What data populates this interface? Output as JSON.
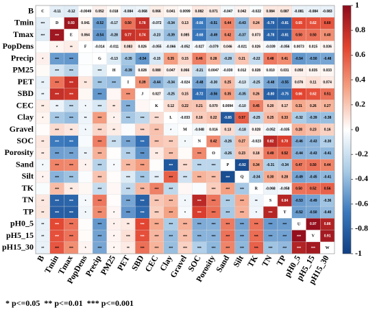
{
  "chart_data": {
    "type": "corrplot",
    "variables": [
      "B",
      "Tmin",
      "Tmax",
      "PopDens",
      "Precip",
      "PM25",
      "PET",
      "SBD",
      "CEC",
      "Clay",
      "Gravel",
      "SOC",
      "Porosity",
      "Sand",
      "Silt",
      "TK",
      "TN",
      "TP",
      "pH0_5",
      "pH5_15",
      "pH15_30"
    ],
    "diagonal_labels": [
      "C",
      "D",
      "E",
      "F",
      "G",
      "H",
      "I",
      "J",
      "K",
      "L",
      "M",
      "N",
      "O",
      "P",
      "Q",
      "R",
      "S",
      "T",
      "U",
      "V",
      "W"
    ],
    "values": [
      [
        -0.11,
        -0.12,
        -0.0049,
        0.052,
        0.018,
        -0.084,
        -0.068,
        0.066,
        0.041,
        0.0099,
        0.082,
        0.071,
        -0.047,
        0.042,
        -0.022,
        0.084,
        0.087,
        -0.081,
        -0.084,
        -0.083
      ],
      [
        0.93,
        0.041,
        -0.52,
        -0.17,
        0.5,
        0.78,
        -0.072,
        -0.34,
        0.13,
        -0.66,
        -0.51,
        0.44,
        -0.43,
        0.24,
        -0.79,
        -0.81,
        0.65,
        0.62,
        0.6
      ],
      [
        0.064,
        -0.54,
        -0.28,
        0.77,
        0.74,
        -0.23,
        -0.39,
        0.085,
        -0.68,
        -0.49,
        0.42,
        -0.37,
        0.073,
        -0.78,
        -0.81,
        0.5,
        0.5,
        0.4
      ],
      [
        -0.014,
        -0.011,
        0.083,
        0.026,
        -0.055,
        -0.066,
        -0.052,
        -0.027,
        -0.079,
        0.046,
        -0.021,
        0.026,
        -0.039,
        -0.056,
        0.0073,
        0.015,
        0.036
      ],
      [
        -0.13,
        -0.35,
        -0.54,
        -0.15,
        0.35,
        0.15,
        0.46,
        0.28,
        -0.28,
        0.21,
        -0.22,
        0.48,
        0.41,
        -0.54,
        -0.5,
        -0.48
      ],
      [
        -0.39,
        0.028,
        0.08,
        0.047,
        0.066,
        -0.21,
        0.0047,
        -0.03,
        0.012,
        0.028,
        0.01,
        0.031,
        0.05,
        0.035,
        0.033
      ],
      [
        0.39,
        -0.44,
        -0.34,
        -0.024,
        -0.48,
        -0.3,
        0.25,
        -0.13,
        -0.25,
        -0.48,
        -0.55,
        0.076,
        0.11,
        0.074
      ],
      [
        0.027,
        -0.25,
        0.15,
        -0.72,
        -0.56,
        0.35,
        -0.35,
        0.26,
        -0.8,
        -0.75,
        0.66,
        0.62,
        0.51
      ],
      [
        0.12,
        0.22,
        0.21,
        0.07,
        0.0094,
        -0.1,
        0.45,
        0.2,
        0.17,
        0.31,
        0.26,
        0.27
      ],
      [
        -0.033,
        0.18,
        0.22,
        -0.85,
        0.57,
        -0.25,
        0.25,
        0.33,
        -0.32,
        -0.39,
        -0.38
      ],
      [
        -0.048,
        0.016,
        0.13,
        -0.18,
        0.028,
        -0.052,
        -0.035,
        0.28,
        0.23,
        0.16
      ],
      [
        0.42,
        -0.26,
        0.27,
        -0.023,
        0.82,
        0.7,
        -0.46,
        -0.43,
        -0.3
      ],
      [
        -0.26,
        0.23,
        0.18,
        0.49,
        0.52,
        -0.44,
        -0.43,
        -0.41
      ],
      [
        -0.92,
        0.34,
        -0.31,
        -0.34,
        0.47,
        0.5,
        0.44
      ],
      [
        -0.34,
        0.3,
        0.28,
        -0.49,
        -0.45,
        -0.41
      ],
      [
        -0.068,
        -0.058,
        0.5,
        0.52,
        0.56
      ],
      [
        0.84,
        -0.53,
        -0.49,
        -0.36
      ],
      [
        -0.52,
        -0.5,
        -0.4
      ],
      [
        0.97,
        0.86
      ],
      [
        0.91
      ]
    ],
    "value_labels": [
      [
        "-0.11",
        "-0.12",
        "-0.0049",
        "0.052",
        "0.018",
        "-0.084",
        "-0.068",
        "0.066",
        "0.041",
        "0.0099",
        "0.082",
        "0.071",
        "-0.047",
        "0.042",
        "-0.022",
        "0.084",
        "0.087",
        "-0.081",
        "-0.084",
        "-0.083"
      ],
      [
        "0.93",
        "0.041",
        "-0.52",
        "-0.17",
        "0.50",
        "0.78",
        "-0.072",
        "-0.34",
        "0.13",
        "-0.66",
        "-0.51",
        "0.44",
        "-0.43",
        "0.24",
        "-0.79",
        "-0.81",
        "0.65",
        "0.62",
        "0.60"
      ],
      [
        "0.064",
        "-0.54",
        "-0.28",
        "0.77",
        "0.74",
        "-0.23",
        "-0.39",
        "0.085",
        "-0.68",
        "-0.49",
        "0.42",
        "-0.37",
        "0.073",
        "-0.78",
        "-0.81",
        "0.50",
        "0.50",
        "0.40"
      ],
      [
        "-0.014",
        "-0.011",
        "0.083",
        "0.026",
        "-0.055",
        "-0.066",
        "-0.052",
        "-0.027",
        "-0.079",
        "0.046",
        "-0.021",
        "0.026",
        "-0.039",
        "-0.056",
        "0.0073",
        "0.015",
        "0.036"
      ],
      [
        "-0.13",
        "-0.35",
        "-0.54",
        "-0.15",
        "0.35",
        "0.15",
        "0.46",
        "0.28",
        "-0.28",
        "0.21",
        "-0.22",
        "0.48",
        "0.41",
        "-0.54",
        "-0.50",
        "-0.48"
      ],
      [
        "-0.39",
        "0.028",
        "0.080",
        "0.047",
        "0.066",
        "-0.21",
        "0.0047",
        "-0.030",
        "0.012",
        "0.028",
        "0.010",
        "0.031",
        "0.050",
        "0.035",
        "0.033"
      ],
      [
        "0.39",
        "-0.44",
        "-0.34",
        "-0.024",
        "-0.48",
        "-0.30",
        "0.25",
        "-0.13",
        "-0.25",
        "-0.48",
        "-0.55",
        "0.076",
        "0.11",
        "0.074"
      ],
      [
        "0.027",
        "-0.25",
        "0.15",
        "-0.72",
        "-0.56",
        "0.35",
        "-0.35",
        "0.26",
        "-0.80",
        "-0.75",
        "0.66",
        "0.62",
        "0.51"
      ],
      [
        "0.12",
        "0.22",
        "0.21",
        "0.070",
        "0.0094",
        "-0.10",
        "0.45",
        "0.20",
        "0.17",
        "0.31",
        "0.26",
        "0.27"
      ],
      [
        "-0.033",
        "0.18",
        "0.22",
        "-0.85",
        "0.57",
        "-0.25",
        "0.25",
        "0.33",
        "-0.32",
        "-0.39",
        "-0.38"
      ],
      [
        "-0.048",
        "0.016",
        "0.13",
        "-0.18",
        "0.028",
        "-0.052",
        "-0.035",
        "0.28",
        "0.23",
        "0.16"
      ],
      [
        "0.42",
        "-0.26",
        "0.27",
        "-0.023",
        "0.82",
        "0.70",
        "-0.46",
        "-0.43",
        "-0.30"
      ],
      [
        "-0.26",
        "0.23",
        "0.18",
        "0.49",
        "0.52",
        "-0.44",
        "-0.43",
        "-0.41"
      ],
      [
        "-0.92",
        "0.34",
        "-0.31",
        "-0.34",
        "0.47",
        "0.50",
        "0.44"
      ],
      [
        "-0.34",
        "0.30",
        "0.28",
        "-0.49",
        "-0.45",
        "-0.41"
      ],
      [
        "-0.068",
        "-0.058",
        "0.50",
        "0.52",
        "0.56"
      ],
      [
        "0.84",
        "-0.53",
        "-0.49",
        "-0.36"
      ],
      [
        "-0.52",
        "-0.50",
        "-0.40"
      ],
      [
        "0.97",
        "0.86"
      ],
      [
        "0.91"
      ]
    ],
    "stars": [
      [
        "***"
      ],
      [
        "***",
        "***"
      ],
      [
        null,
        "*",
        "**"
      ],
      [
        "*",
        "***",
        "***",
        null
      ],
      [
        null,
        "***",
        "***",
        null,
        "***"
      ],
      [
        "**",
        "***",
        "***",
        "**",
        "***",
        "***"
      ],
      [
        "**",
        "***",
        "***",
        null,
        "***",
        null,
        "***"
      ],
      [
        "**",
        "**",
        "***",
        "*",
        "***",
        "**",
        "***",
        null
      ],
      [
        "*",
        "***",
        "***",
        "**",
        "***",
        "*",
        "***",
        "***",
        "***"
      ],
      [
        null,
        "***",
        "**",
        "*",
        "***",
        "**",
        null,
        "***",
        "***",
        "*"
      ],
      [
        "**",
        "***",
        "***",
        null,
        "***",
        "***",
        "***",
        "***",
        "***",
        "***",
        "*"
      ],
      [
        "**",
        "***",
        "***",
        "**",
        "***",
        null,
        "***",
        "***",
        "**",
        "***",
        null,
        "***"
      ],
      [
        "*",
        "***",
        "***",
        "*",
        "***",
        "*",
        "***",
        "***",
        null,
        "***",
        "***",
        "***",
        "***"
      ],
      [
        "*",
        "***",
        "***",
        null,
        "***",
        null,
        "***",
        "***",
        "***",
        "***",
        "***",
        "***",
        "***",
        "***"
      ],
      [
        null,
        "***",
        "**",
        null,
        "***",
        null,
        "***",
        "***",
        "***",
        "***",
        null,
        null,
        "***",
        "***",
        "***"
      ],
      [
        "**",
        "***",
        "***",
        "*",
        "***",
        null,
        "***",
        "***",
        "***",
        "***",
        "*",
        "***",
        "***",
        "***",
        "***",
        "**"
      ],
      [
        "**",
        "***",
        "***",
        "*",
        "***",
        "*",
        "***",
        "***",
        "***",
        "***",
        "*",
        "***",
        "***",
        "***",
        "***",
        "*",
        "***"
      ],
      [
        "**",
        "***",
        "***",
        null,
        "***",
        "*",
        "**",
        "***",
        "***",
        "***",
        "***",
        "***",
        "***",
        "***",
        "***",
        "***",
        "***",
        "***"
      ],
      [
        "**",
        "***",
        "***",
        null,
        "***",
        "*",
        "***",
        "***",
        "***",
        "***",
        "***",
        "***",
        "***",
        "***",
        "***",
        "***",
        "***",
        "***",
        "***"
      ],
      [
        "**",
        "***",
        "***",
        "*",
        "***",
        "*",
        "**",
        "***",
        "***",
        "***",
        "***",
        "***",
        "***",
        "***",
        "***",
        "***",
        "***",
        "***",
        "***",
        "***"
      ]
    ],
    "zlim": [
      -1,
      1
    ],
    "zticks": [
      -1,
      -0.8,
      -0.6,
      -0.4,
      -0.2,
      0,
      0.2,
      0.4,
      0.6,
      0.8,
      1
    ],
    "colors": [
      "#0f3f84",
      "#3a78bd",
      "#a9cbe6",
      "#ffffff",
      "#f5a284",
      "#e2432f",
      "#8d0b1c"
    ],
    "footnote": "* p<=0.05  ** p<=0.01  *** p<=0.001"
  }
}
